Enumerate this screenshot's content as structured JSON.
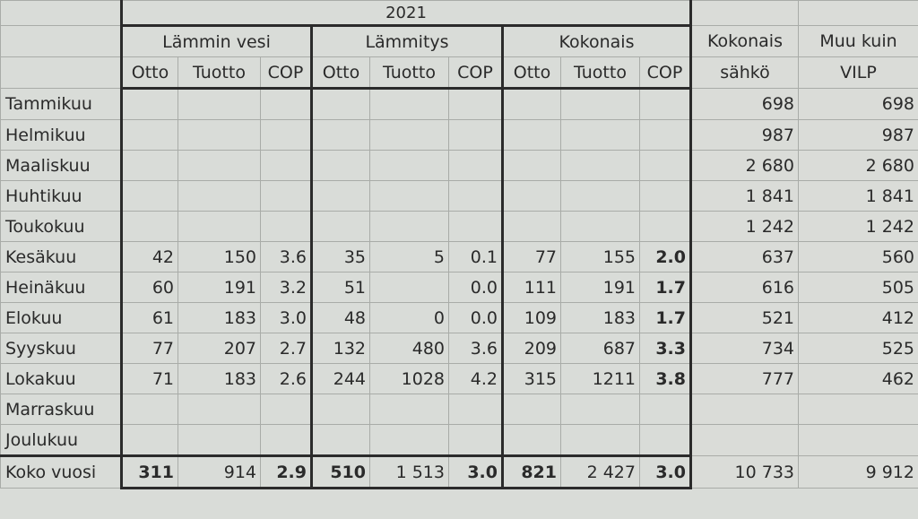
{
  "header": {
    "year": "2021",
    "groups": [
      "Lämmin vesi",
      "Lämmitys",
      "Kokonais"
    ],
    "sub": [
      "Otto",
      "Tuotto",
      "COP"
    ],
    "extra_col1": [
      "Kokonais",
      "sähkö"
    ],
    "extra_col2": [
      "Muu kuin",
      "VILP"
    ]
  },
  "rows": [
    {
      "label": "Tammikuu",
      "cells": [
        "",
        "",
        "",
        "",
        "",
        "",
        "",
        "",
        "",
        "698",
        "698"
      ]
    },
    {
      "label": "Helmikuu",
      "cells": [
        "",
        "",
        "",
        "",
        "",
        "",
        "",
        "",
        "",
        "987",
        "987"
      ]
    },
    {
      "label": "Maaliskuu",
      "cells": [
        "",
        "",
        "",
        "",
        "",
        "",
        "",
        "",
        "",
        "2 680",
        "2 680"
      ]
    },
    {
      "label": "Huhtikuu",
      "cells": [
        "",
        "",
        "",
        "",
        "",
        "",
        "",
        "",
        "",
        "1 841",
        "1 841"
      ]
    },
    {
      "label": "Toukokuu",
      "cells": [
        "",
        "",
        "",
        "",
        "",
        "",
        "",
        "",
        "",
        "1 242",
        "1 242"
      ]
    },
    {
      "label": "Kesäkuu",
      "cells": [
        "42",
        "150",
        "3.6",
        "35",
        "5",
        "0.1",
        "77",
        "155",
        "2.0",
        "637",
        "560"
      ]
    },
    {
      "label": "Heinäkuu",
      "cells": [
        "60",
        "191",
        "3.2",
        "51",
        "",
        "0.0",
        "111",
        "191",
        "1.7",
        "616",
        "505"
      ]
    },
    {
      "label": "Elokuu",
      "cells": [
        "61",
        "183",
        "3.0",
        "48",
        "0",
        "0.0",
        "109",
        "183",
        "1.7",
        "521",
        "412"
      ]
    },
    {
      "label": "Syyskuu",
      "cells": [
        "77",
        "207",
        "2.7",
        "132",
        "480",
        "3.6",
        "209",
        "687",
        "3.3",
        "734",
        "525"
      ]
    },
    {
      "label": "Lokakuu",
      "cells": [
        "71",
        "183",
        "2.6",
        "244",
        "1028",
        "4.2",
        "315",
        "1211",
        "3.8",
        "777",
        "462"
      ]
    },
    {
      "label": "Marraskuu",
      "cells": [
        "",
        "",
        "",
        "",
        "",
        "",
        "",
        "",
        "",
        "",
        ""
      ]
    },
    {
      "label": "Joulukuu",
      "cells": [
        "",
        "",
        "",
        "",
        "",
        "",
        "",
        "",
        "",
        "",
        ""
      ]
    },
    {
      "label": "Koko vuosi",
      "cells": [
        "311",
        "914",
        "2.9",
        "510",
        "1 513",
        "3.0",
        "821",
        "2 427",
        "3.0",
        "10 733",
        "9 912"
      ]
    }
  ]
}
